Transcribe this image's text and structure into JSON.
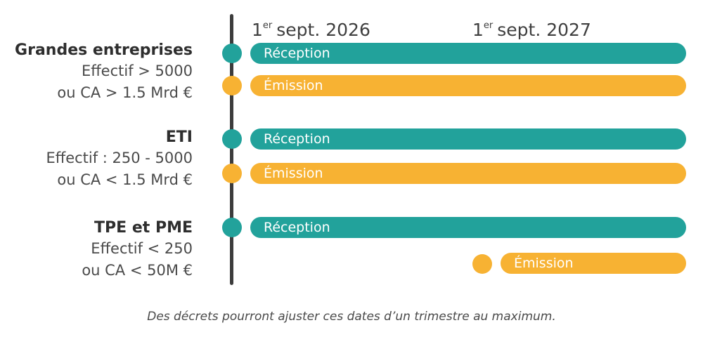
{
  "colors": {
    "reception": "#22a29b",
    "emission": "#f7b233",
    "line": "#3c3c3c"
  },
  "dates": [
    {
      "ordinal": "1",
      "sup": "er",
      "text": "sept. 2026"
    },
    {
      "ordinal": "1",
      "sup": "er",
      "text": "sept. 2027"
    }
  ],
  "groups": [
    {
      "name": "Grandes entreprises",
      "line1": "Effectif > 5000",
      "line2": "ou CA > 1.5 Mrd €"
    },
    {
      "name": "ETI",
      "line1": "Effectif : 250 - 5000",
      "line2": "ou CA < 1.5 Mrd €"
    },
    {
      "name": "TPE et PME",
      "line1": "Effectif < 250",
      "line2": "ou CA < 50M €"
    }
  ],
  "bars": {
    "reception_label": "Réception",
    "emission_label": "Émission"
  },
  "footnote": "Des décrets pourront ajuster ces dates d’un trimestre au maximum."
}
